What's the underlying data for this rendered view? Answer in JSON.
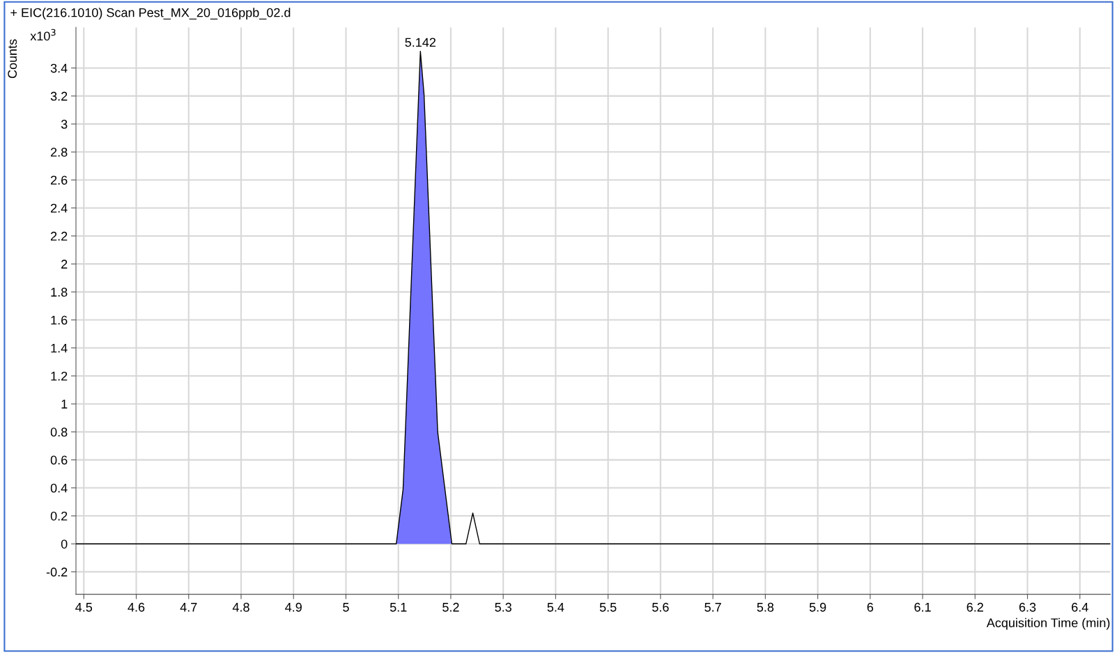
{
  "chart_data": {
    "type": "line",
    "title": "+ EIC(216.1010) Scan Pest_MX_20_016ppb_02.d",
    "xlabel": "Acquisition Time (min)",
    "ylabel": "Counts",
    "annotations": [
      "x10$^{3}$",
      {
        "text": "5.142",
        "x": 5.142,
        "y": 3.52
      }
    ],
    "series": [
      {
        "type": "area",
        "color": "#7474ff",
        "x": [
          5.096,
          5.109,
          5.142,
          5.149,
          5.175,
          5.202
        ],
        "values": [
          0,
          0.39,
          3.52,
          3.21,
          0.8,
          0
        ]
      },
      {
        "color": "#000000",
        "x": [
          4.485,
          5.096,
          5.109,
          5.142,
          5.149,
          5.175,
          5.202,
          5.229,
          5.242,
          5.255,
          6.458
        ],
        "values": [
          0,
          0,
          0.39,
          3.52,
          3.21,
          0.8,
          0,
          0,
          0.22,
          0,
          0
        ]
      }
    ],
    "xlim": [
      4.485,
      6.458
    ],
    "ylim": [
      -0.36,
      3.69
    ],
    "xticks": [
      4.5,
      4.6,
      4.7,
      4.8,
      4.9,
      5,
      5.1,
      5.2,
      5.3,
      5.4,
      5.5,
      5.6,
      5.7,
      5.8,
      5.9,
      6,
      6.1,
      6.2,
      6.3,
      6.4
    ],
    "yticks": [
      -0.2,
      0,
      0.2,
      0.4,
      0.6,
      0.8,
      1,
      1.2,
      1.4,
      1.6,
      1.8,
      2,
      2.2,
      2.4,
      2.6,
      2.8,
      3,
      3.2,
      3.4
    ],
    "grid": true,
    "marker": "none",
    "line_style": "solid",
    "legend": false
  }
}
